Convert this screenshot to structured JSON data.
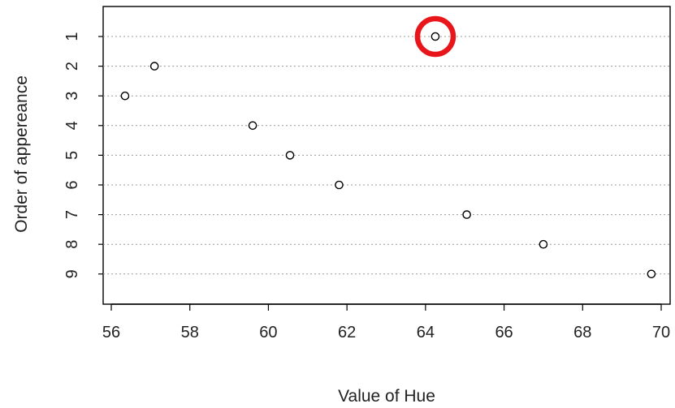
{
  "chart_data": {
    "type": "scatter",
    "title": "",
    "xlabel": "Value of Hue",
    "ylabel": "Order of appereance",
    "xlim": [
      56,
      70
    ],
    "xticks": [
      "56",
      "58",
      "60",
      "62",
      "64",
      "66",
      "68",
      "70"
    ],
    "yticks": [
      "1",
      "2",
      "3",
      "4",
      "5",
      "6",
      "7",
      "8",
      "9"
    ],
    "grid": "horizontal dotted",
    "highlight": {
      "order": 1,
      "color": "#e8151b",
      "shape": "circle"
    },
    "points": [
      {
        "order": 1,
        "value": 64.25
      },
      {
        "order": 2,
        "value": 57.1
      },
      {
        "order": 3,
        "value": 56.35
      },
      {
        "order": 4,
        "value": 59.6
      },
      {
        "order": 5,
        "value": 60.55
      },
      {
        "order": 6,
        "value": 61.8
      },
      {
        "order": 7,
        "value": 65.05
      },
      {
        "order": 8,
        "value": 67.0
      },
      {
        "order": 9,
        "value": 69.75
      }
    ]
  }
}
